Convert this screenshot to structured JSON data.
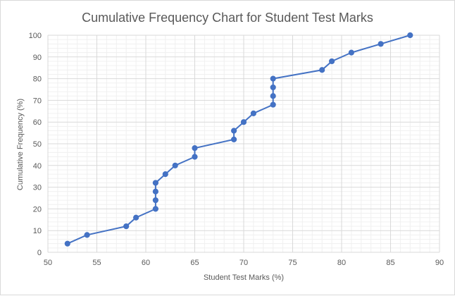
{
  "chart_data": {
    "type": "line",
    "title": "Cumulative Frequency Chart for Student Test Marks",
    "xlabel": "Student Test Marks (%)",
    "ylabel": "Cumulative Frequency (%)",
    "xlim": [
      50,
      90
    ],
    "ylim": [
      0,
      100
    ],
    "x_ticks": [
      50,
      55,
      60,
      65,
      70,
      75,
      80,
      85,
      90
    ],
    "y_ticks": [
      0,
      10,
      20,
      30,
      40,
      50,
      60,
      70,
      80,
      90,
      100
    ],
    "x_tick_labels": [
      "50",
      "55",
      "60",
      "65",
      "70",
      "75",
      "80",
      "85",
      "90"
    ],
    "y_tick_labels": [
      "0",
      "10",
      "20",
      "30",
      "40",
      "50",
      "60",
      "70",
      "80",
      "90",
      "100"
    ],
    "grid": true,
    "legend": "none",
    "series_color": "#4472c4",
    "gridline_color": "#d9d9d9",
    "minor_gridline_color": "#f0f0f0",
    "series": [
      {
        "x": [
          52,
          54,
          58,
          59,
          61,
          61,
          61,
          61,
          62,
          63,
          65,
          65,
          69,
          69,
          70,
          71,
          73,
          73,
          73,
          73,
          78,
          79,
          81,
          84,
          87
        ],
        "y": [
          4,
          8,
          12,
          16,
          20,
          24,
          28,
          32,
          36,
          40,
          44,
          48,
          52,
          56,
          60,
          64,
          68,
          72,
          76,
          80,
          84,
          88,
          92,
          96,
          100
        ]
      }
    ]
  }
}
